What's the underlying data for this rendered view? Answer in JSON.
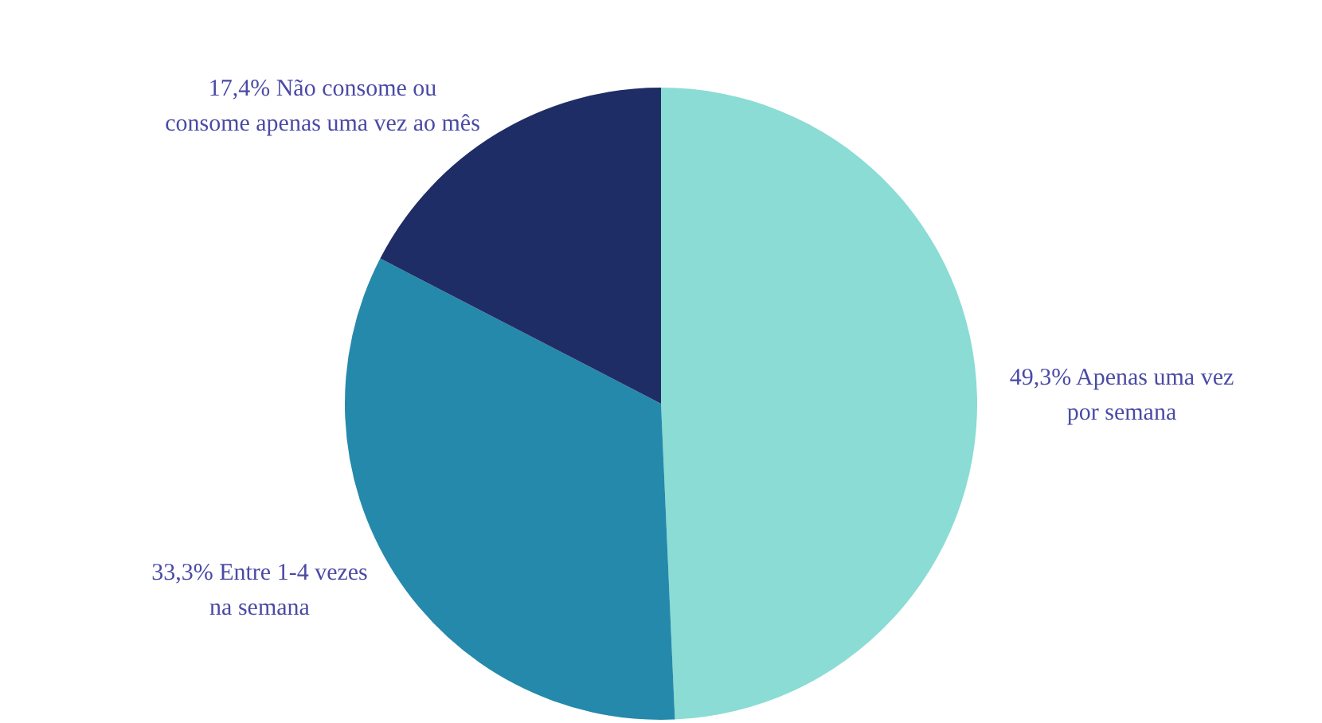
{
  "chart_data": {
    "type": "pie",
    "categories": [
      "Apenas uma vez por semana",
      "Entre 1-4 vezes na semana",
      "Não consome ou consome apenas uma vez ao mês"
    ],
    "values": [
      49.3,
      33.3,
      17.4
    ],
    "value_labels": [
      "49,3%",
      "33,3%",
      "17,4%"
    ],
    "colors": [
      "#8adcd4",
      "#2589ab",
      "#1f2d66"
    ],
    "legend": false
  }
}
